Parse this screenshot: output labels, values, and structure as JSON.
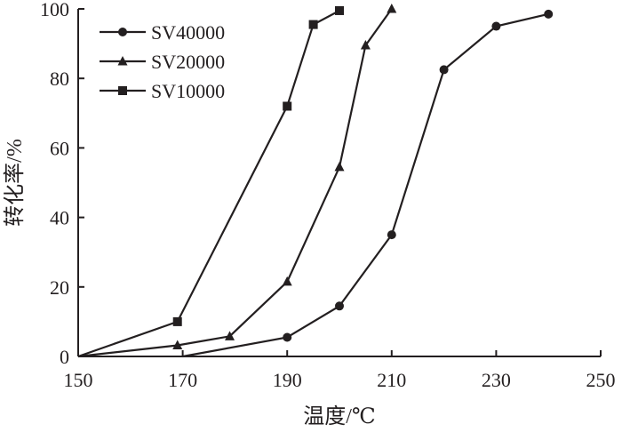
{
  "chart_data": {
    "type": "line",
    "xlabel": "温度/℃",
    "ylabel": "转化率/%",
    "xlim": [
      150,
      250
    ],
    "ylim": [
      0,
      100
    ],
    "xticks": [
      150,
      170,
      190,
      210,
      230,
      250
    ],
    "yticks": [
      0,
      20,
      40,
      60,
      80,
      100
    ],
    "grid": false,
    "legend_position": "top-left",
    "series": [
      {
        "name": "SV40000",
        "marker": "circle",
        "x": [
          170,
          190,
          200,
          210,
          220,
          230,
          240
        ],
        "y": [
          0,
          5.5,
          14.5,
          35,
          82.5,
          95,
          98.5
        ]
      },
      {
        "name": "SV20000",
        "marker": "triangle",
        "x": [
          150,
          169,
          179,
          190,
          200,
          205,
          210
        ],
        "y": [
          0,
          3.2,
          5.8,
          21.5,
          54.5,
          89.5,
          100
        ]
      },
      {
        "name": "SV10000",
        "marker": "square",
        "x": [
          150,
          169,
          190,
          195,
          200
        ],
        "y": [
          0,
          10,
          72,
          95.5,
          99.5
        ]
      }
    ]
  }
}
